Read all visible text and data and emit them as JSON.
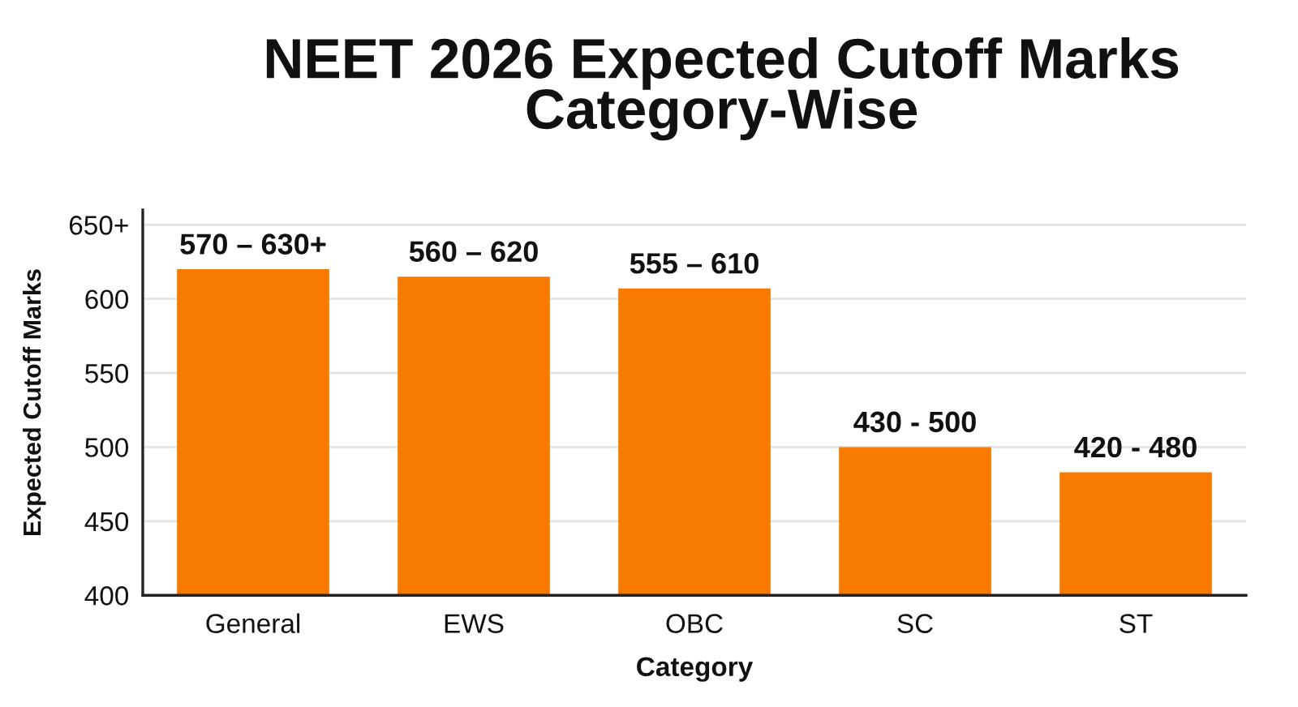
{
  "chart_data": {
    "type": "bar",
    "title": "NEET 2026 Expected Cutoff Marks\nCategory-Wise",
    "xlabel": "Category",
    "ylabel": "Expected Cutoff Marks",
    "categories": [
      "General",
      "EWS",
      "OBC",
      "SC",
      "ST"
    ],
    "values": [
      620,
      615,
      607,
      500,
      483
    ],
    "annotations": [
      {
        "text": "570 – 630+",
        "x": "General",
        "y": 620
      },
      {
        "text": "560 – 620",
        "x": "EWS",
        "y": 615
      },
      {
        "text": "555 – 610",
        "x": "OBC",
        "y": 607
      },
      {
        "text": "430 - 500",
        "x": "SC",
        "y": 500
      },
      {
        "text": "420 - 480",
        "x": "ST",
        "y": 483
      }
    ],
    "color": "#f77b00",
    "ylim": [
      400,
      660
    ],
    "yticks": [
      400,
      450,
      500,
      550,
      600,
      {
        "value": 650,
        "label": "650+"
      }
    ],
    "grid": "y"
  }
}
